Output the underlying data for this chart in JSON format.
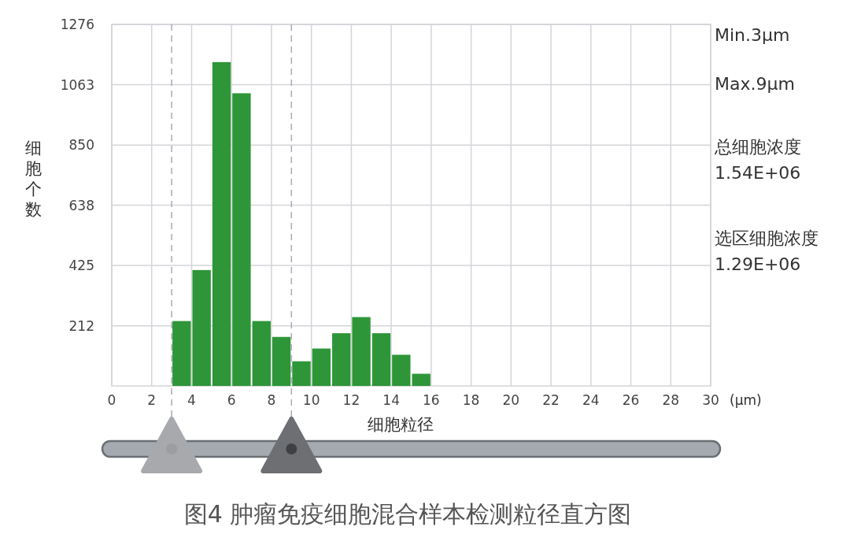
{
  "chart_data": {
    "type": "histogram",
    "title": "图4  肿瘤免疫细胞混合样本检测粒径直方图",
    "xlabel": "细胞粒径",
    "ylabel": "细胞个数",
    "bins": [
      3,
      4,
      5,
      6,
      7,
      8,
      9,
      10,
      11,
      12,
      13,
      14,
      15,
      16
    ],
    "values": [
      229,
      409,
      1143,
      1033,
      229,
      173,
      87,
      132,
      186,
      243,
      186,
      110,
      43
    ],
    "color": "#2e9638",
    "xlim": [
      0,
      30
    ],
    "xticks": [
      0,
      2,
      4,
      6,
      8,
      10,
      12,
      14,
      16,
      18,
      20,
      22,
      24,
      26,
      28,
      30
    ],
    "ylim": [
      0,
      1276
    ],
    "yticks": [
      212,
      425,
      638,
      850,
      1063,
      1276
    ],
    "grid": true,
    "ref_lines": [
      {
        "axis": "x",
        "value": 3,
        "color": "#a9abae",
        "line_style": "dashed"
      },
      {
        "axis": "x",
        "value": 9,
        "color": "#a9abae",
        "line_style": "dashed"
      }
    ],
    "annotations": [
      "(μm)",
      "Min.3μm",
      "Max.9μm",
      "总细胞浓度",
      "1.54E+06",
      "选区细胞浓度",
      "1.29E+06"
    ]
  }
}
